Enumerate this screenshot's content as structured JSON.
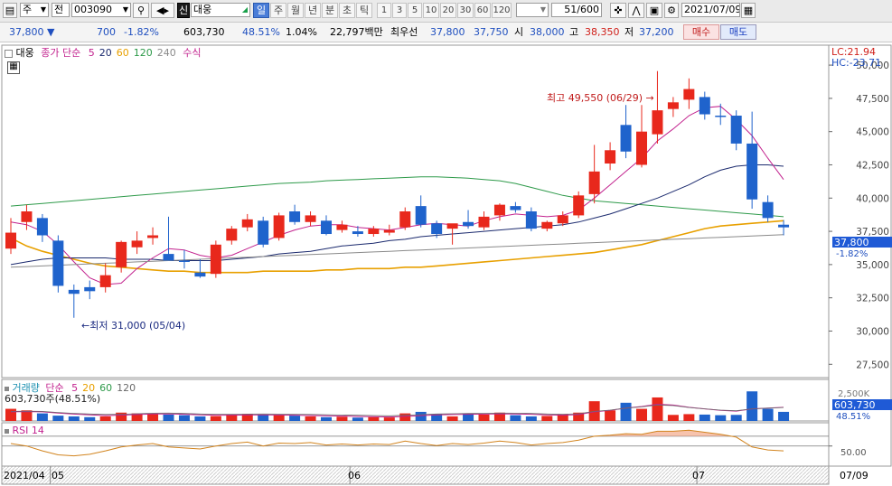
{
  "toolbar": {
    "market_type": "주",
    "compare_mode": "전",
    "stock_code": "003090",
    "credit_badge": "신",
    "stock_name": "대웅",
    "periods": [
      "일",
      "주",
      "월",
      "년",
      "분",
      "초",
      "틱"
    ],
    "selected_period": "일",
    "intervals": [
      "1",
      "3",
      "5",
      "10",
      "20",
      "30",
      "60",
      "120"
    ],
    "count": "51/600",
    "date": "2021/07/09"
  },
  "quote": {
    "price": "37,800",
    "change": "700",
    "change_pct": "-1.82%",
    "volume": "603,730",
    "volume_ratio": "48.51%",
    "turnover_rate": "1.04%",
    "trade_value": "22,797백만",
    "bid_label": "최우선",
    "ask_price": "37,800",
    "bid_price": "37,750",
    "open_label": "시",
    "open": "38,000",
    "high_label": "고",
    "high": "38,350",
    "low_label": "저",
    "low": "37,200",
    "buy_label": "매수",
    "sell_label": "매도"
  },
  "price_panel": {
    "stock_tag": "대웅",
    "ma_label": "종가 단순",
    "ma_periods": [
      "5",
      "20",
      "60",
      "120",
      "240"
    ],
    "ma_colors": [
      "#c2228e",
      "#1b2a6e",
      "#e8a000",
      "#2e9a4a",
      "#8a8a8a"
    ],
    "formula_label": "수식",
    "lc_label": "LC:21.94",
    "hc_label": "HC:-23.71",
    "current_price_tag": "37,800",
    "current_change_tag": "-1.82%",
    "max_annotation": "최고 49,550 (06/29) →",
    "min_annotation": "←최저 31,000 (05/04)"
  },
  "volume_panel": {
    "title": "거래량",
    "ma_label": "단순",
    "ma_periods": [
      "5",
      "20",
      "60",
      "120"
    ],
    "current_label": "603,730주(48.51%)",
    "axis_top": "2,500K",
    "current_tag": "603,730",
    "current_pct_tag": "48.51%"
  },
  "rsi_panel": {
    "title": "RSI 14",
    "axis_label": "50.00"
  },
  "x_axis": {
    "labels": [
      "2021/04",
      "05",
      "06",
      "07"
    ],
    "right_label": "07/09"
  },
  "colors": {
    "up": "#e8281c",
    "down": "#1f63cc",
    "rsi_line": "#d2841e"
  },
  "chart_data": {
    "type": "candlestick",
    "y_ticks": [
      27500,
      30000,
      32500,
      35000,
      37500,
      40000,
      42500,
      45000,
      47500,
      50000
    ],
    "ylim": [
      26500,
      51500
    ],
    "candles": [
      {
        "o": 36200,
        "h": 38500,
        "l": 35800,
        "c": 37400
      },
      {
        "o": 38200,
        "h": 39500,
        "l": 37600,
        "c": 39000
      },
      {
        "o": 38500,
        "h": 38800,
        "l": 36700,
        "c": 37200
      },
      {
        "o": 36800,
        "h": 37200,
        "l": 32900,
        "c": 33400
      },
      {
        "o": 33100,
        "h": 33500,
        "l": 31000,
        "c": 32800
      },
      {
        "o": 33300,
        "h": 33800,
        "l": 32400,
        "c": 33000
      },
      {
        "o": 33300,
        "h": 35100,
        "l": 32900,
        "c": 34200
      },
      {
        "o": 34800,
        "h": 36800,
        "l": 34400,
        "c": 36700
      },
      {
        "o": 36300,
        "h": 37500,
        "l": 35800,
        "c": 36800
      },
      {
        "o": 37000,
        "h": 37800,
        "l": 36500,
        "c": 37200
      },
      {
        "o": 35800,
        "h": 38600,
        "l": 35300,
        "c": 35300
      },
      {
        "o": 35300,
        "h": 36100,
        "l": 34700,
        "c": 35200
      },
      {
        "o": 34400,
        "h": 35400,
        "l": 34000,
        "c": 34100
      },
      {
        "o": 34300,
        "h": 36800,
        "l": 34000,
        "c": 36500
      },
      {
        "o": 36800,
        "h": 37900,
        "l": 36500,
        "c": 37700
      },
      {
        "o": 37800,
        "h": 38800,
        "l": 37500,
        "c": 38400
      },
      {
        "o": 38300,
        "h": 38600,
        "l": 36300,
        "c": 36500
      },
      {
        "o": 37000,
        "h": 38900,
        "l": 36800,
        "c": 38700
      },
      {
        "o": 39000,
        "h": 39500,
        "l": 38000,
        "c": 38200
      },
      {
        "o": 38200,
        "h": 39000,
        "l": 37900,
        "c": 38700
      },
      {
        "o": 38300,
        "h": 38700,
        "l": 37200,
        "c": 37300
      },
      {
        "o": 37600,
        "h": 38300,
        "l": 37400,
        "c": 38000
      },
      {
        "o": 37500,
        "h": 37900,
        "l": 37100,
        "c": 37300
      },
      {
        "o": 37300,
        "h": 37900,
        "l": 37100,
        "c": 37700
      },
      {
        "o": 37400,
        "h": 38000,
        "l": 37200,
        "c": 37600
      },
      {
        "o": 37800,
        "h": 39300,
        "l": 37600,
        "c": 39000
      },
      {
        "o": 39400,
        "h": 40200,
        "l": 37800,
        "c": 38000
      },
      {
        "o": 38100,
        "h": 38300,
        "l": 37000,
        "c": 37300
      },
      {
        "o": 37700,
        "h": 38000,
        "l": 36500,
        "c": 38100
      },
      {
        "o": 38200,
        "h": 39100,
        "l": 37700,
        "c": 37900
      },
      {
        "o": 37800,
        "h": 39000,
        "l": 37600,
        "c": 38600
      },
      {
        "o": 38700,
        "h": 39600,
        "l": 38300,
        "c": 39500
      },
      {
        "o": 39400,
        "h": 39700,
        "l": 38900,
        "c": 39100
      },
      {
        "o": 39000,
        "h": 39300,
        "l": 37500,
        "c": 37700
      },
      {
        "o": 37700,
        "h": 38300,
        "l": 37500,
        "c": 38200
      },
      {
        "o": 38100,
        "h": 39000,
        "l": 37900,
        "c": 38700
      },
      {
        "o": 38700,
        "h": 40500,
        "l": 38500,
        "c": 40200
      },
      {
        "o": 40300,
        "h": 44000,
        "l": 39600,
        "c": 42000
      },
      {
        "o": 42600,
        "h": 44200,
        "l": 42100,
        "c": 43600
      },
      {
        "o": 45500,
        "h": 47000,
        "l": 43000,
        "c": 43500
      },
      {
        "o": 42500,
        "h": 47000,
        "l": 42300,
        "c": 45000
      },
      {
        "o": 44800,
        "h": 49550,
        "l": 44100,
        "c": 46600
      },
      {
        "o": 46700,
        "h": 47600,
        "l": 46100,
        "c": 47200
      },
      {
        "o": 47400,
        "h": 49000,
        "l": 46700,
        "c": 48200
      },
      {
        "o": 47600,
        "h": 48000,
        "l": 45900,
        "c": 46300
      },
      {
        "o": 46200,
        "h": 47100,
        "l": 45500,
        "c": 46100
      },
      {
        "o": 46200,
        "h": 46600,
        "l": 43600,
        "c": 44100
      },
      {
        "o": 44100,
        "h": 46500,
        "l": 39200,
        "c": 39900
      },
      {
        "o": 39700,
        "h": 40200,
        "l": 38200,
        "c": 38500
      },
      {
        "o": 38000,
        "h": 38350,
        "l": 37200,
        "c": 37800
      }
    ],
    "ma5": [
      38200,
      38000,
      37500,
      36500,
      35200,
      34000,
      33500,
      33600,
      34700,
      35500,
      36200,
      36100,
      35700,
      35500,
      35700,
      36200,
      36700,
      37200,
      37600,
      37900,
      38000,
      38000,
      37800,
      37700,
      37600,
      37800,
      38000,
      38100,
      38000,
      37900,
      38300,
      38600,
      38800,
      38700,
      38600,
      38700,
      39100,
      40000,
      41000,
      42000,
      43000,
      44300,
      45200,
      46200,
      46800,
      46900,
      45900,
      44700,
      43000,
      41400
    ],
    "ma20": [
      35000,
      35200,
      35400,
      35500,
      35500,
      35500,
      35500,
      35400,
      35400,
      35400,
      35300,
      35300,
      35300,
      35300,
      35400,
      35500,
      35600,
      35800,
      35900,
      36000,
      36200,
      36400,
      36500,
      36600,
      36800,
      36900,
      37100,
      37200,
      37300,
      37400,
      37500,
      37600,
      37700,
      37800,
      37900,
      38000,
      38200,
      38500,
      38800,
      39200,
      39600,
      40000,
      40500,
      41000,
      41600,
      42100,
      42400,
      42500,
      42500,
      42400
    ],
    "ma60": [
      37000,
      36400,
      36000,
      35700,
      35400,
      35100,
      34900,
      34800,
      34700,
      34600,
      34500,
      34500,
      34400,
      34400,
      34400,
      34400,
      34500,
      34500,
      34500,
      34500,
      34600,
      34600,
      34700,
      34700,
      34700,
      34800,
      34800,
      34900,
      35000,
      35100,
      35200,
      35300,
      35400,
      35500,
      35600,
      35700,
      35800,
      35900,
      36100,
      36300,
      36500,
      36800,
      37100,
      37400,
      37700,
      37900,
      38000,
      38100,
      38200,
      38300
    ],
    "ma120": [
      39400,
      39500,
      39600,
      39700,
      39800,
      39900,
      40000,
      40100,
      40200,
      40300,
      40400,
      40500,
      40600,
      40700,
      40800,
      40900,
      41000,
      41100,
      41150,
      41200,
      41300,
      41350,
      41400,
      41450,
      41500,
      41550,
      41600,
      41600,
      41550,
      41500,
      41400,
      41300,
      41100,
      40800,
      40500,
      40200,
      40000,
      39800,
      39700,
      39600,
      39500,
      39400,
      39300,
      39200,
      39100,
      39000,
      38900,
      38800,
      38700,
      38600
    ],
    "ma240": [
      34800,
      34850,
      34900,
      34950,
      35000,
      35050,
      35100,
      35150,
      35200,
      35250,
      35300,
      35350,
      35400,
      35450,
      35500,
      35550,
      35600,
      35650,
      35700,
      35750,
      35800,
      35850,
      35900,
      35950,
      36000,
      36050,
      36100,
      36150,
      36200,
      36250,
      36300,
      36350,
      36400,
      36450,
      36500,
      36550,
      36600,
      36650,
      36700,
      36750,
      36800,
      36850,
      36900,
      36950,
      37000,
      37050,
      37100,
      37150,
      37200,
      37250
    ],
    "volume": [
      800,
      700,
      500,
      350,
      300,
      250,
      300,
      550,
      500,
      480,
      420,
      380,
      300,
      320,
      420,
      450,
      400,
      380,
      350,
      300,
      250,
      280,
      220,
      250,
      230,
      500,
      600,
      450,
      300,
      480,
      420,
      550,
      380,
      300,
      330,
      450,
      550,
      1300,
      700,
      1200,
      800,
      1550,
      400,
      450,
      420,
      380,
      400,
      1950,
      800,
      600
    ],
    "vol_ma5": [
      600,
      620,
      600,
      520,
      450,
      400,
      360,
      380,
      420,
      460,
      470,
      440,
      400,
      380,
      380,
      390,
      400,
      390,
      380,
      360,
      340,
      320,
      300,
      280,
      260,
      300,
      350,
      400,
      420,
      440,
      450,
      470,
      460,
      440,
      400,
      380,
      420,
      600,
      700,
      850,
      950,
      1100,
      1050,
      900,
      800,
      700,
      650,
      800,
      850,
      900
    ],
    "rsi": [
      55,
      50,
      40,
      32,
      30,
      33,
      40,
      48,
      52,
      55,
      48,
      46,
      44,
      50,
      55,
      58,
      50,
      56,
      55,
      57,
      52,
      54,
      52,
      54,
      53,
      60,
      55,
      51,
      55,
      53,
      56,
      60,
      57,
      52,
      55,
      57,
      62,
      70,
      72,
      75,
      74,
      80,
      80,
      82,
      78,
      74,
      68,
      48,
      42,
      40
    ]
  }
}
